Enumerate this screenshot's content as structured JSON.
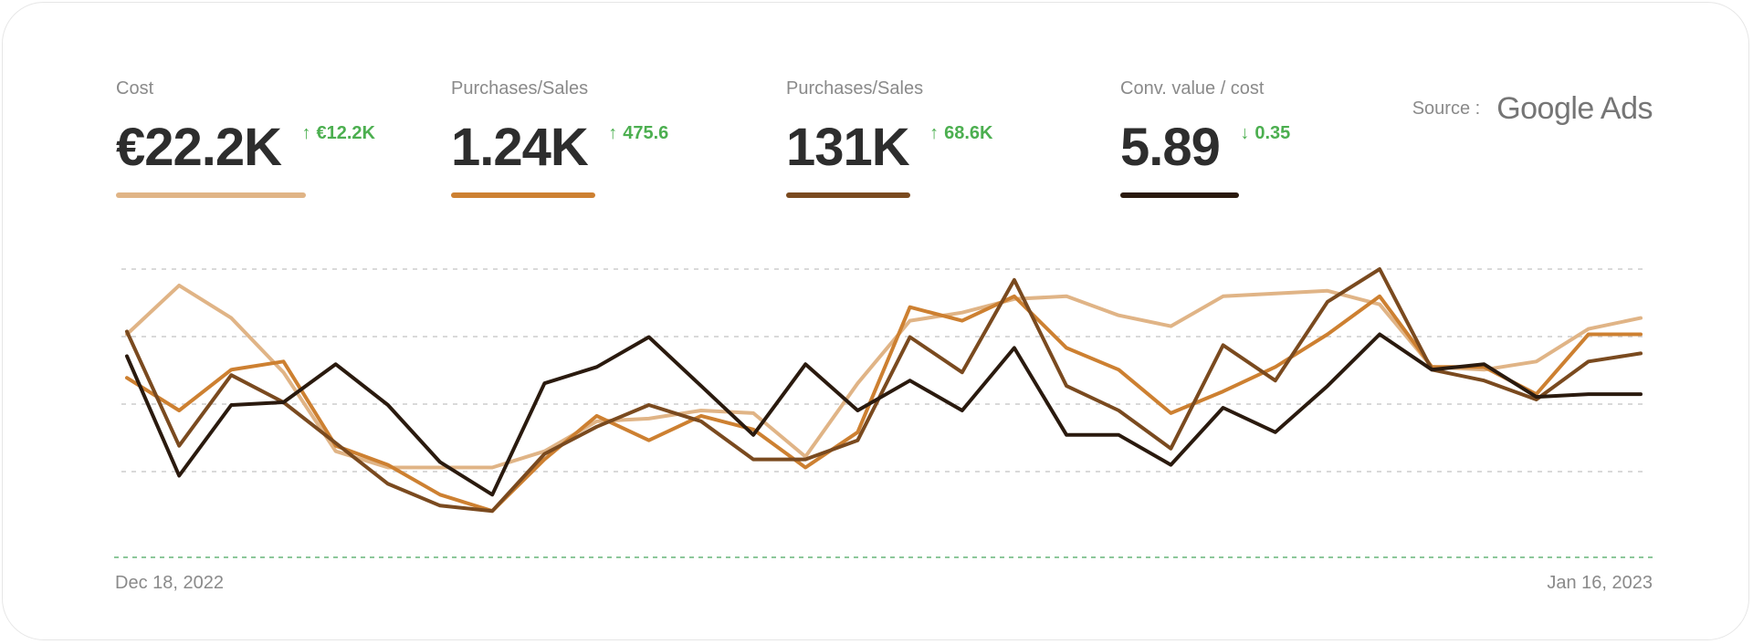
{
  "metrics": [
    {
      "label": "Cost",
      "value": "€22.2K",
      "delta": "€12.2K",
      "direction": "up",
      "color": "#e0b486"
    },
    {
      "label": "Purchases/Sales",
      "value": "1.24K",
      "delta": "475.6",
      "direction": "up",
      "color": "#cd8031"
    },
    {
      "label": "Purchases/Sales",
      "value": "131K",
      "delta": "68.6K",
      "direction": "up",
      "color": "#7a4a1f"
    },
    {
      "label": "Conv. value / cost",
      "value": "5.89",
      "delta": "0.35",
      "direction": "down",
      "color": "#2a1a0e"
    }
  ],
  "source": {
    "label": "Source :",
    "logo": "Google Ads"
  },
  "axis": {
    "start_label": "Dec 18, 2022",
    "end_label": "Jan 16, 2023"
  },
  "colors": {
    "positive": "#4caf50",
    "grid": "#d9d9d9",
    "baseline": "#8cc79a"
  },
  "chart_data": {
    "type": "line",
    "grid": true,
    "x": [
      "2022-12-18",
      "2022-12-19",
      "2022-12-20",
      "2022-12-21",
      "2022-12-22",
      "2022-12-23",
      "2022-12-24",
      "2022-12-25",
      "2022-12-26",
      "2022-12-27",
      "2022-12-28",
      "2022-12-29",
      "2022-12-30",
      "2022-12-31",
      "2023-01-01",
      "2023-01-02",
      "2023-01-03",
      "2023-01-04",
      "2023-01-05",
      "2023-01-06",
      "2023-01-07",
      "2023-01-08",
      "2023-01-09",
      "2023-01-10",
      "2023-01-11",
      "2023-01-12",
      "2023-01-13",
      "2023-01-14",
      "2023-01-15",
      "2023-01-16"
    ],
    "ylim": [
      0,
      100
    ],
    "series": [
      {
        "color": "#e0b486",
        "values": [
          76,
          94,
          82,
          62,
          33,
          27,
          27,
          27,
          33,
          44,
          45,
          48,
          47,
          31,
          58,
          81,
          84,
          89,
          90,
          83,
          79,
          90,
          91,
          92,
          87,
          64,
          63,
          66,
          78,
          82
        ]
      },
      {
        "color": "#cd8031",
        "values": [
          60,
          48,
          63,
          66,
          35,
          28,
          17,
          11,
          30,
          46,
          37,
          46,
          41,
          27,
          40,
          86,
          81,
          90,
          71,
          63,
          47,
          55,
          64,
          76,
          90,
          64,
          64,
          54,
          76,
          76
        ]
      },
      {
        "color": "#7a4a1f",
        "values": [
          77,
          35,
          61,
          51,
          36,
          21,
          13,
          11,
          32,
          42,
          50,
          44,
          30,
          30,
          37,
          75,
          62,
          96,
          57,
          48,
          34,
          72,
          59,
          88,
          100,
          63,
          59,
          52,
          66,
          69
        ]
      },
      {
        "color": "#2a1a0e",
        "values": [
          68,
          24,
          50,
          51,
          65,
          50,
          29,
          17,
          58,
          64,
          75,
          57,
          39,
          65,
          48,
          59,
          48,
          71,
          39,
          39,
          28,
          49,
          40,
          57,
          76,
          63,
          65,
          53,
          54,
          54
        ]
      }
    ]
  }
}
